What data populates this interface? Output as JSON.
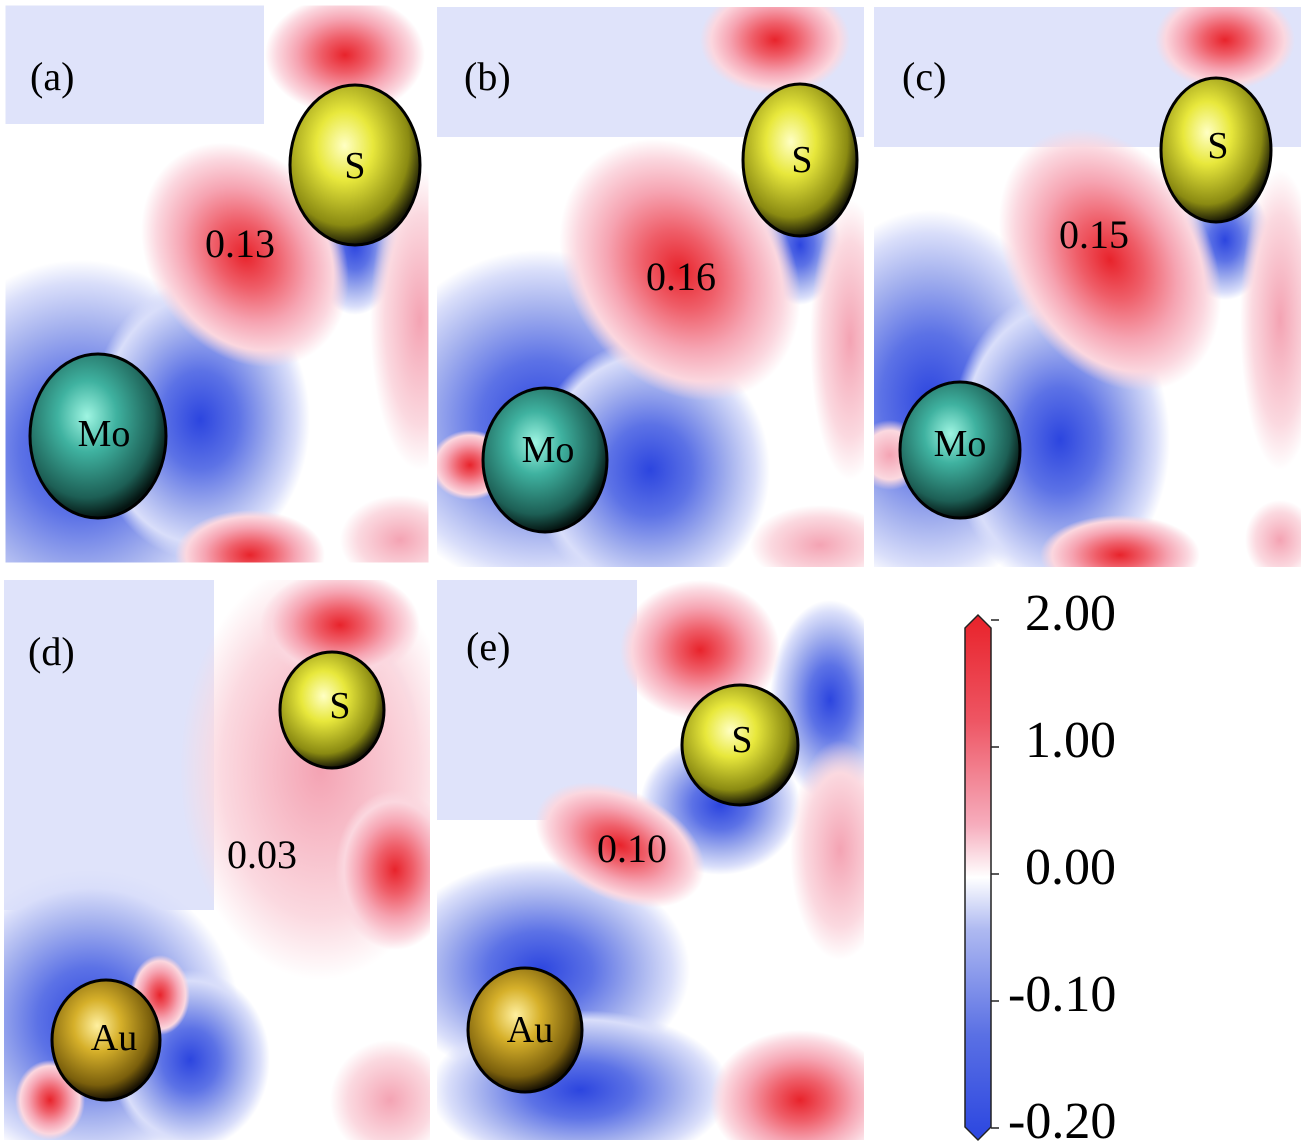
{
  "panels": [
    {
      "id": "a",
      "label": "(a)",
      "value_label": "0.13",
      "atoms": [
        {
          "symbol": "S",
          "color": "#e3e33a"
        },
        {
          "symbol": "Mo",
          "color": "#3fb2a0"
        }
      ]
    },
    {
      "id": "b",
      "label": "(b)",
      "value_label": "0.16",
      "atoms": [
        {
          "symbol": "S",
          "color": "#e3e33a"
        },
        {
          "symbol": "Mo",
          "color": "#3fb2a0"
        }
      ]
    },
    {
      "id": "c",
      "label": "(c)",
      "value_label": "0.15",
      "atoms": [
        {
          "symbol": "S",
          "color": "#e3e33a"
        },
        {
          "symbol": "Mo",
          "color": "#3fb2a0"
        }
      ]
    },
    {
      "id": "d",
      "label": "(d)",
      "value_label": "0.03",
      "atoms": [
        {
          "symbol": "S",
          "color": "#e3e33a"
        },
        {
          "symbol": "Au",
          "color": "#d6b02a"
        }
      ]
    },
    {
      "id": "e",
      "label": "(e)",
      "value_label": "0.10",
      "atoms": [
        {
          "symbol": "S",
          "color": "#e3e33a"
        },
        {
          "symbol": "Au",
          "color": "#d6b02a"
        }
      ]
    }
  ],
  "colorbar": {
    "ticks": [
      "2.00",
      "1.00",
      "0.00",
      "-0.10",
      "-0.20"
    ],
    "colors": {
      "max": "#e8222a",
      "zero": "#ffffff",
      "min": "#2b46e0"
    }
  }
}
